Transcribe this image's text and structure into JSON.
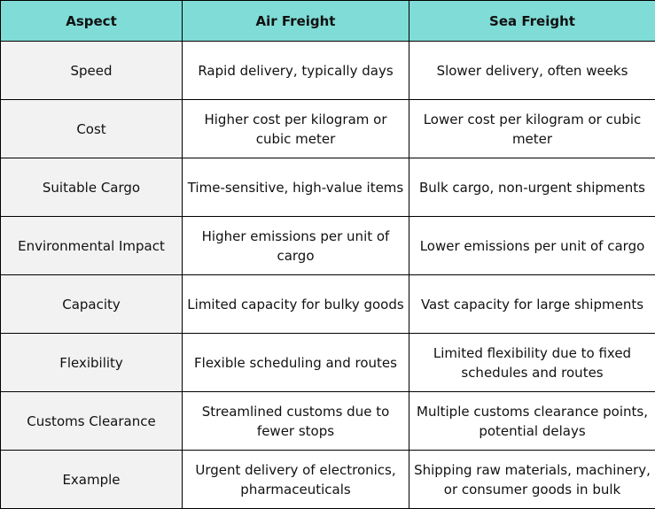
{
  "table": {
    "headers": [
      "Aspect",
      "Air Freight",
      "Sea Freight"
    ],
    "rows": [
      [
        "Speed",
        "Rapid delivery, typically days",
        "Slower delivery, often weeks"
      ],
      [
        "Cost",
        "Higher cost per kilogram or cubic meter",
        "Lower cost per kilogram or cubic meter"
      ],
      [
        "Suitable Cargo",
        "Time-sensitive, high-value items",
        "Bulk cargo, non-urgent shipments"
      ],
      [
        "Environmental Impact",
        "Higher emissions per unit of cargo",
        "Lower emissions per unit of cargo"
      ],
      [
        "Capacity",
        "Limited capacity for bulky goods",
        "Vast capacity for large shipments"
      ],
      [
        "Flexibility",
        "Flexible scheduling and routes",
        "Limited flexibility due to fixed schedules and routes"
      ],
      [
        "Customs Clearance",
        "Streamlined customs due to fewer stops",
        "Multiple customs clearance points, potential delays"
      ],
      [
        "Example",
        "Urgent delivery of electronics, pharmaceuticals",
        "Shipping raw materials, machinery, or consumer goods in bulk"
      ]
    ]
  },
  "colors": {
    "header_background": "#7fdcd6",
    "first_column_background": "#f2f2f2",
    "border": "#000000"
  }
}
